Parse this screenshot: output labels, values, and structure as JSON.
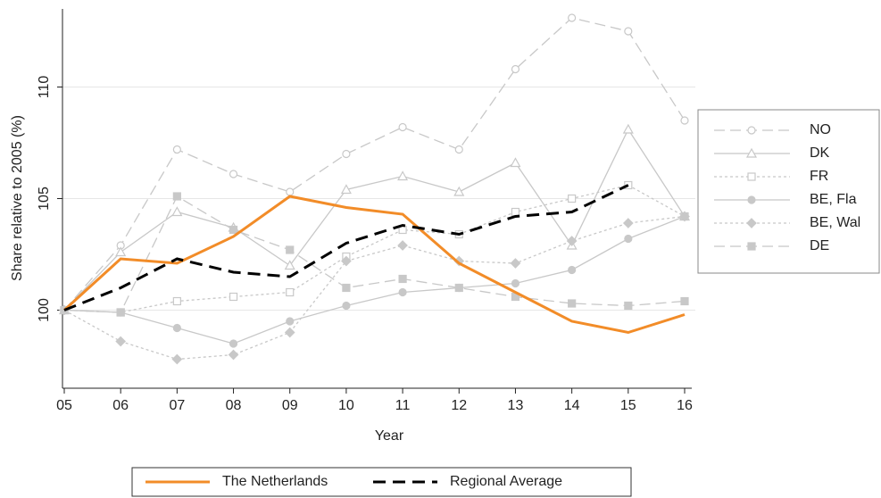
{
  "chart_data": {
    "type": "line",
    "x_label": "Year",
    "y_label": "Share relative to 2005 (%)",
    "categories": [
      "05",
      "06",
      "07",
      "08",
      "09",
      "10",
      "11",
      "12",
      "13",
      "14",
      "15",
      "16"
    ],
    "ylim": [
      96.5,
      113.5
    ],
    "yticks": [
      100,
      105,
      110
    ],
    "grid": true,
    "series": [
      {
        "name": "NO",
        "color": "#c8c8c8",
        "marker": "circle-open",
        "dash": "long",
        "legend": "right",
        "values": [
          100,
          102.9,
          107.2,
          106.1,
          105.3,
          107.0,
          108.2,
          107.2,
          110.8,
          113.1,
          112.5,
          108.5
        ]
      },
      {
        "name": "DK",
        "color": "#c8c8c8",
        "marker": "triangle-open",
        "dash": "solid",
        "legend": "right",
        "values": [
          100,
          102.6,
          104.4,
          103.7,
          102.0,
          105.4,
          106.0,
          105.3,
          106.6,
          102.9,
          108.1,
          104.2
        ]
      },
      {
        "name": "FR",
        "color": "#c8c8c8",
        "marker": "square-open",
        "dash": "dot",
        "legend": "right",
        "values": [
          100,
          99.9,
          100.4,
          100.6,
          100.8,
          102.4,
          103.6,
          103.4,
          104.4,
          105.0,
          105.6,
          104.2
        ]
      },
      {
        "name": "BE, Fla",
        "color": "#c8c8c8",
        "marker": "circle",
        "dash": "solid",
        "legend": "right",
        "values": [
          100,
          99.9,
          99.2,
          98.5,
          99.5,
          100.2,
          100.8,
          101.0,
          101.2,
          101.8,
          103.2,
          104.2
        ]
      },
      {
        "name": "BE, Wal",
        "color": "#c8c8c8",
        "marker": "diamond",
        "dash": "dot",
        "legend": "right",
        "values": [
          100,
          98.6,
          97.8,
          98.0,
          99.0,
          102.2,
          102.9,
          102.2,
          102.1,
          103.1,
          103.9,
          104.2
        ]
      },
      {
        "name": "DE",
        "color": "#c8c8c8",
        "marker": "square",
        "dash": "long",
        "legend": "right",
        "values": [
          100,
          99.9,
          105.1,
          103.6,
          102.7,
          101.0,
          101.4,
          101.0,
          100.6,
          100.3,
          100.2,
          100.4
        ]
      },
      {
        "name": "The Netherlands",
        "color": "#f28c28",
        "marker": "none",
        "dash": "solid",
        "legend": "bottom",
        "width": 3,
        "values": [
          100,
          102.3,
          102.1,
          103.3,
          105.1,
          104.6,
          104.3,
          102.1,
          100.8,
          99.5,
          99.0,
          99.8
        ]
      },
      {
        "name": "Regional Average",
        "color": "#000000",
        "marker": "none",
        "dash": "heavy",
        "legend": "bottom",
        "width": 3,
        "values": [
          100,
          101.0,
          102.3,
          101.7,
          101.5,
          103.0,
          103.8,
          103.4,
          104.2,
          104.4,
          105.6,
          null
        ]
      }
    ]
  }
}
